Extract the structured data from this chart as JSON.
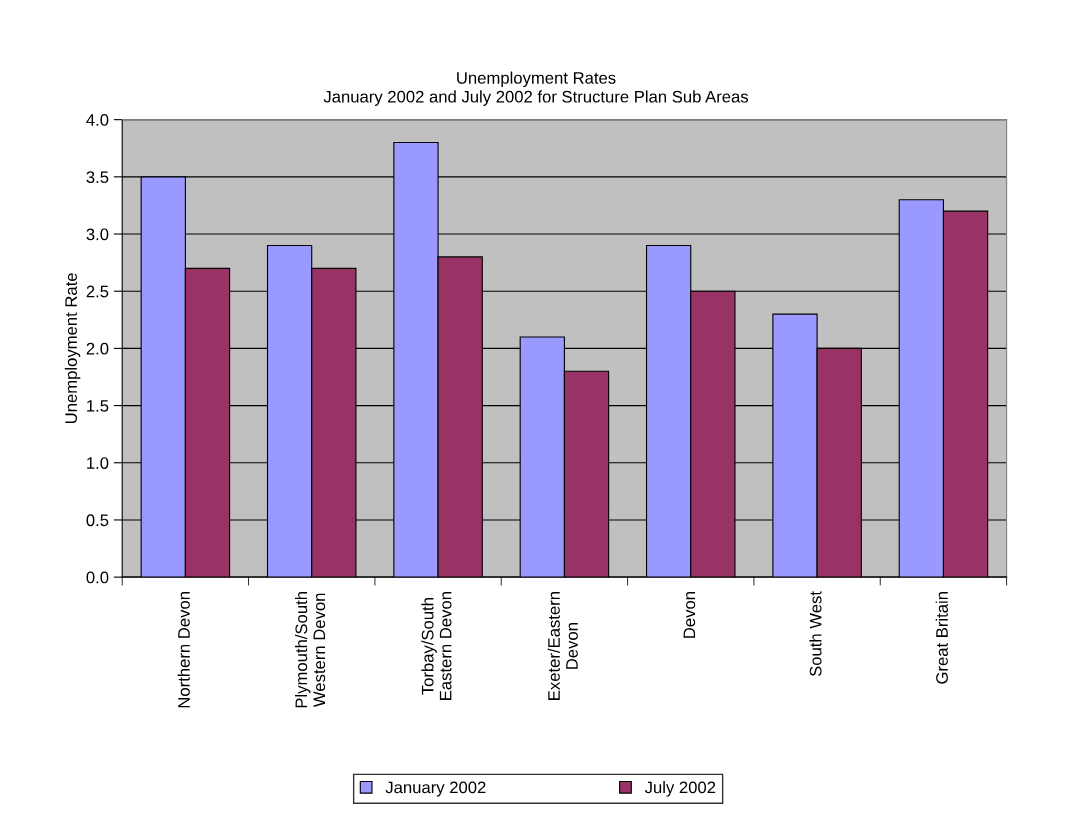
{
  "chart_data": {
    "type": "bar",
    "title": "Unemployment Rates",
    "subtitle": "January 2002 and July 2002 for Structure Plan Sub Areas",
    "ylabel": "Unemployment Rate",
    "categories": [
      "Northern Devon",
      "Plymouth/South\nWestern Devon",
      "Torbay/South\nEastern Devon",
      "Exeter/Eastern\nDevon",
      "Devon",
      "South West",
      "Great Britain"
    ],
    "series": [
      {
        "name": "January 2002",
        "color": "#9999ff",
        "values": [
          3.5,
          2.9,
          3.8,
          2.1,
          2.9,
          2.3,
          3.3
        ]
      },
      {
        "name": "July 2002",
        "color": "#993366",
        "values": [
          2.7,
          2.7,
          2.8,
          1.8,
          2.5,
          2.0,
          3.2
        ]
      }
    ],
    "ylim": [
      0,
      4
    ],
    "yticks": [
      {
        "value": 0,
        "label": "0.0"
      },
      {
        "value": 0.5,
        "label": "0.5"
      },
      {
        "value": 1,
        "label": "1.0"
      },
      {
        "value": 1.5,
        "label": "1.5"
      },
      {
        "value": 2,
        "label": "2.0"
      },
      {
        "value": 2.5,
        "label": "2.5"
      },
      {
        "value": 3,
        "label": "3.0"
      },
      {
        "value": 3.5,
        "label": "3.5"
      },
      {
        "value": 4,
        "label": "4.0"
      }
    ],
    "grid": "y",
    "legend": "bottom"
  }
}
